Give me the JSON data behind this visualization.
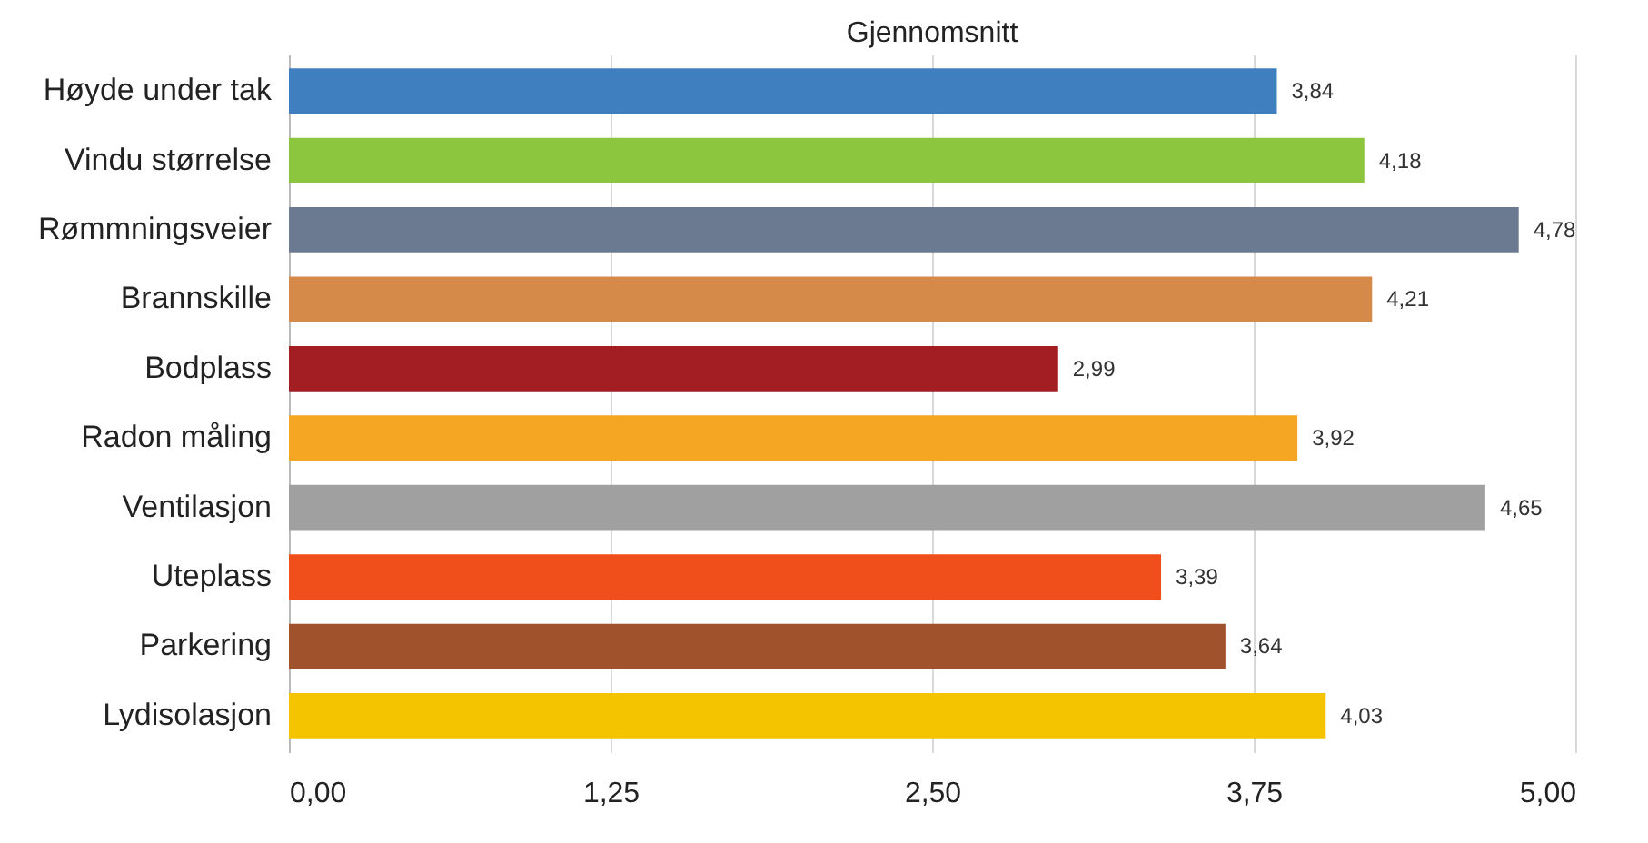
{
  "chart_data": {
    "type": "bar",
    "orientation": "horizontal",
    "title": "Gjennomsnitt",
    "categories": [
      "Høyde under tak",
      "Vindu størrelse",
      "Rømmningsveier",
      "Brannskille",
      "Bodplass",
      "Radon måling",
      "Ventilasjon",
      "Uteplass",
      "Parkering",
      "Lydisolasjon"
    ],
    "values": [
      3.84,
      4.18,
      4.78,
      4.21,
      2.99,
      3.92,
      4.65,
      3.39,
      3.64,
      4.03
    ],
    "colors": [
      "#3f7fc0",
      "#8cc63e",
      "#6b7a90",
      "#d68a4a",
      "#a31e22",
      "#f5a623",
      "#a0a0a0",
      "#f04e1a",
      "#a0522d",
      "#f5c400"
    ],
    "value_labels": [
      "3,84",
      "4,18",
      "4,78",
      "4,21",
      "2,99",
      "3,92",
      "4,65",
      "3,39",
      "3,64",
      "4,03"
    ],
    "xlim": [
      0,
      5
    ],
    "xticks": [
      {
        "value": 0,
        "label": "0,00"
      },
      {
        "value": 1.25,
        "label": "1,25"
      },
      {
        "value": 2.5,
        "label": "2,50"
      },
      {
        "value": 3.75,
        "label": "3,75"
      },
      {
        "value": 5,
        "label": "5,00"
      }
    ],
    "grid": "x"
  }
}
